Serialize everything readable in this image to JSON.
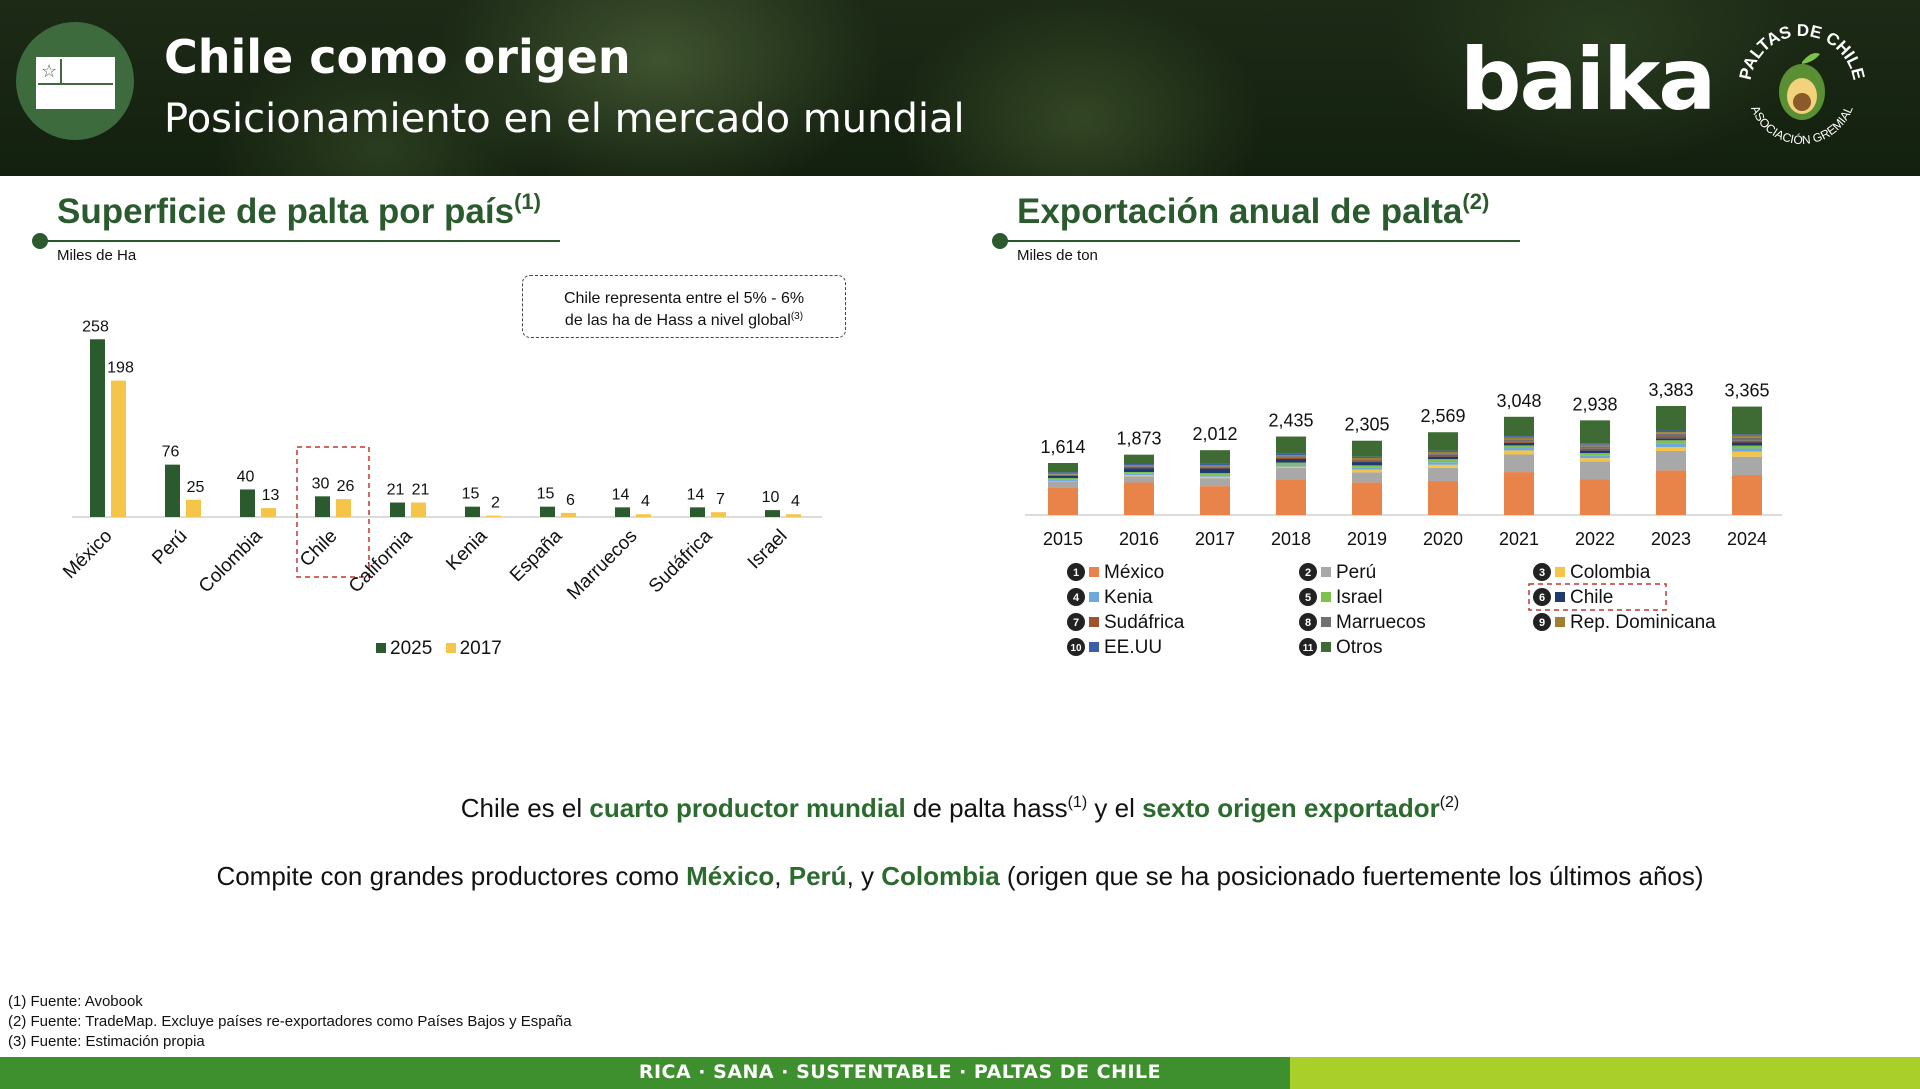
{
  "header": {
    "title": "Chile como origen",
    "subtitle": "Posicionamiento en el mercado mundial",
    "brand": "baika",
    "badge_text_top": "PALTAS DE CHILE",
    "badge_text_bottom": "ASOCIACIÓN GREMIAL"
  },
  "left": {
    "title": "Superficie de palta por país",
    "title_ref": "(1)",
    "unit": "Miles de Ha",
    "note_line1": "Chile representa entre el 5% - 6%",
    "note_line2": "de las ha de Hass a nivel global",
    "note_ref": "(3)"
  },
  "right": {
    "title": "Exportación anual de palta",
    "title_ref": "(2)",
    "unit": "Miles de ton"
  },
  "colors": {
    "green_dark": "#2b5a2e",
    "yellow": "#f5c54a",
    "highlight_green": "#2b6b2e"
  },
  "chart_data": [
    {
      "type": "bar",
      "title": "Superficie de palta por país",
      "ylabel": "Miles de Ha",
      "categories": [
        "México",
        "Perú",
        "Colombia",
        "Chile",
        "California",
        "Kenia",
        "España",
        "Marruecos",
        "Sudáfrica",
        "Israel"
      ],
      "series": [
        {
          "name": "2025",
          "color": "#2b5a2e",
          "values": [
            258,
            76,
            40,
            30,
            21,
            15,
            15,
            14,
            14,
            10
          ]
        },
        {
          "name": "2017",
          "color": "#f5c54a",
          "values": [
            198,
            25,
            13,
            26,
            21,
            2,
            6,
            4,
            7,
            4
          ]
        }
      ],
      "highlight_category": "Chile",
      "ylim": [
        0,
        270
      ],
      "legend": "bottom",
      "grid": false
    },
    {
      "type": "bar",
      "stacked": true,
      "title": "Exportación anual de palta",
      "ylabel": "Miles de ton",
      "categories": [
        "2015",
        "2016",
        "2017",
        "2018",
        "2019",
        "2020",
        "2021",
        "2022",
        "2023",
        "2024"
      ],
      "totals": [
        1614,
        1873,
        2012,
        2435,
        2305,
        2569,
        3048,
        2938,
        3383,
        3365
      ],
      "total_labels": [
        "1,614",
        "1,873",
        "2,012",
        "2,435",
        "2,305",
        "2,569",
        "3,048",
        "2,938",
        "3,383",
        "3,365"
      ],
      "series": [
        {
          "rank": "1",
          "name": "México",
          "color": "#e8834a",
          "values": [
            863,
            1009,
            896,
            1100,
            1012,
            1054,
            1332,
            1102,
            1385,
            1240
          ]
        },
        {
          "rank": "2",
          "name": "Perú",
          "color": "#a8a8a8",
          "values": [
            177,
            194,
            247,
            359,
            312,
            410,
            545,
            557,
            602,
            570
          ]
        },
        {
          "rank": "3",
          "name": "Colombia",
          "color": "#f5c54a",
          "values": [
            17,
            33,
            44,
            45,
            81,
            96,
            127,
            103,
            120,
            155
          ]
        },
        {
          "rank": "4",
          "name": "Kenia",
          "color": "#6fa8dc",
          "values": [
            41,
            44,
            52,
            62,
            65,
            78,
            75,
            91,
            117,
            100
          ]
        },
        {
          "rank": "5",
          "name": "Israel",
          "color": "#7fc24a",
          "values": [
            50,
            54,
            60,
            62,
            70,
            96,
            80,
            70,
            95,
            90
          ]
        },
        {
          "rank": "6",
          "name": "Chile",
          "color": "#1f3a6e",
          "values": [
            66,
            121,
            143,
            110,
            103,
            78,
            81,
            85,
            62,
            95
          ]
        },
        {
          "rank": "7",
          "name": "Sudáfrica",
          "color": "#a0522d",
          "values": [
            33,
            44,
            43,
            56,
            50,
            54,
            52,
            52,
            55,
            55
          ]
        },
        {
          "rank": "8",
          "name": "Marruecos",
          "color": "#707070",
          "values": [
            17,
            20,
            28,
            33,
            42,
            47,
            60,
            72,
            82,
            95
          ]
        },
        {
          "rank": "9",
          "name": "Rep. Dominicana",
          "color": "#a08030",
          "values": [
            20,
            22,
            28,
            30,
            35,
            40,
            45,
            50,
            55,
            60
          ]
        },
        {
          "rank": "10",
          "name": "EE.UU",
          "color": "#3a5ea8",
          "values": [
            40,
            40,
            45,
            45,
            40,
            45,
            50,
            45,
            50,
            45
          ]
        },
        {
          "rank": "11",
          "name": "Otros",
          "color": "#3e6b33",
          "values": [
            290,
            292,
            426,
            533,
            495,
            571,
            601,
            711,
            760,
            860
          ]
        }
      ],
      "highlight_series": "Chile",
      "legend": "bottom",
      "grid": false
    }
  ],
  "statements": {
    "line1": {
      "p1": "Chile es el ",
      "h1": "cuarto productor mundial",
      "p2": " de palta hass",
      "r1": "(1)",
      "p3": " y el ",
      "h2": "sexto origen exportador",
      "r2": "(2)"
    },
    "line2": {
      "p1": "Compite con grandes productores como ",
      "h1": "México",
      "s1": ", ",
      "h2": "Perú",
      "s2": ", y ",
      "h3": "Colombia",
      "p2": " (origen que se ha posicionado fuertemente los últimos años)"
    }
  },
  "footnotes": [
    "(1) Fuente: Avobook",
    "(2) Fuente: TradeMap. Excluye países re-exportadores como Países Bajos y España",
    "(3) Fuente: Estimación propia"
  ],
  "footer": {
    "text": "RICA · SANA · SUSTENTABLE · PALTAS DE CHILE"
  }
}
